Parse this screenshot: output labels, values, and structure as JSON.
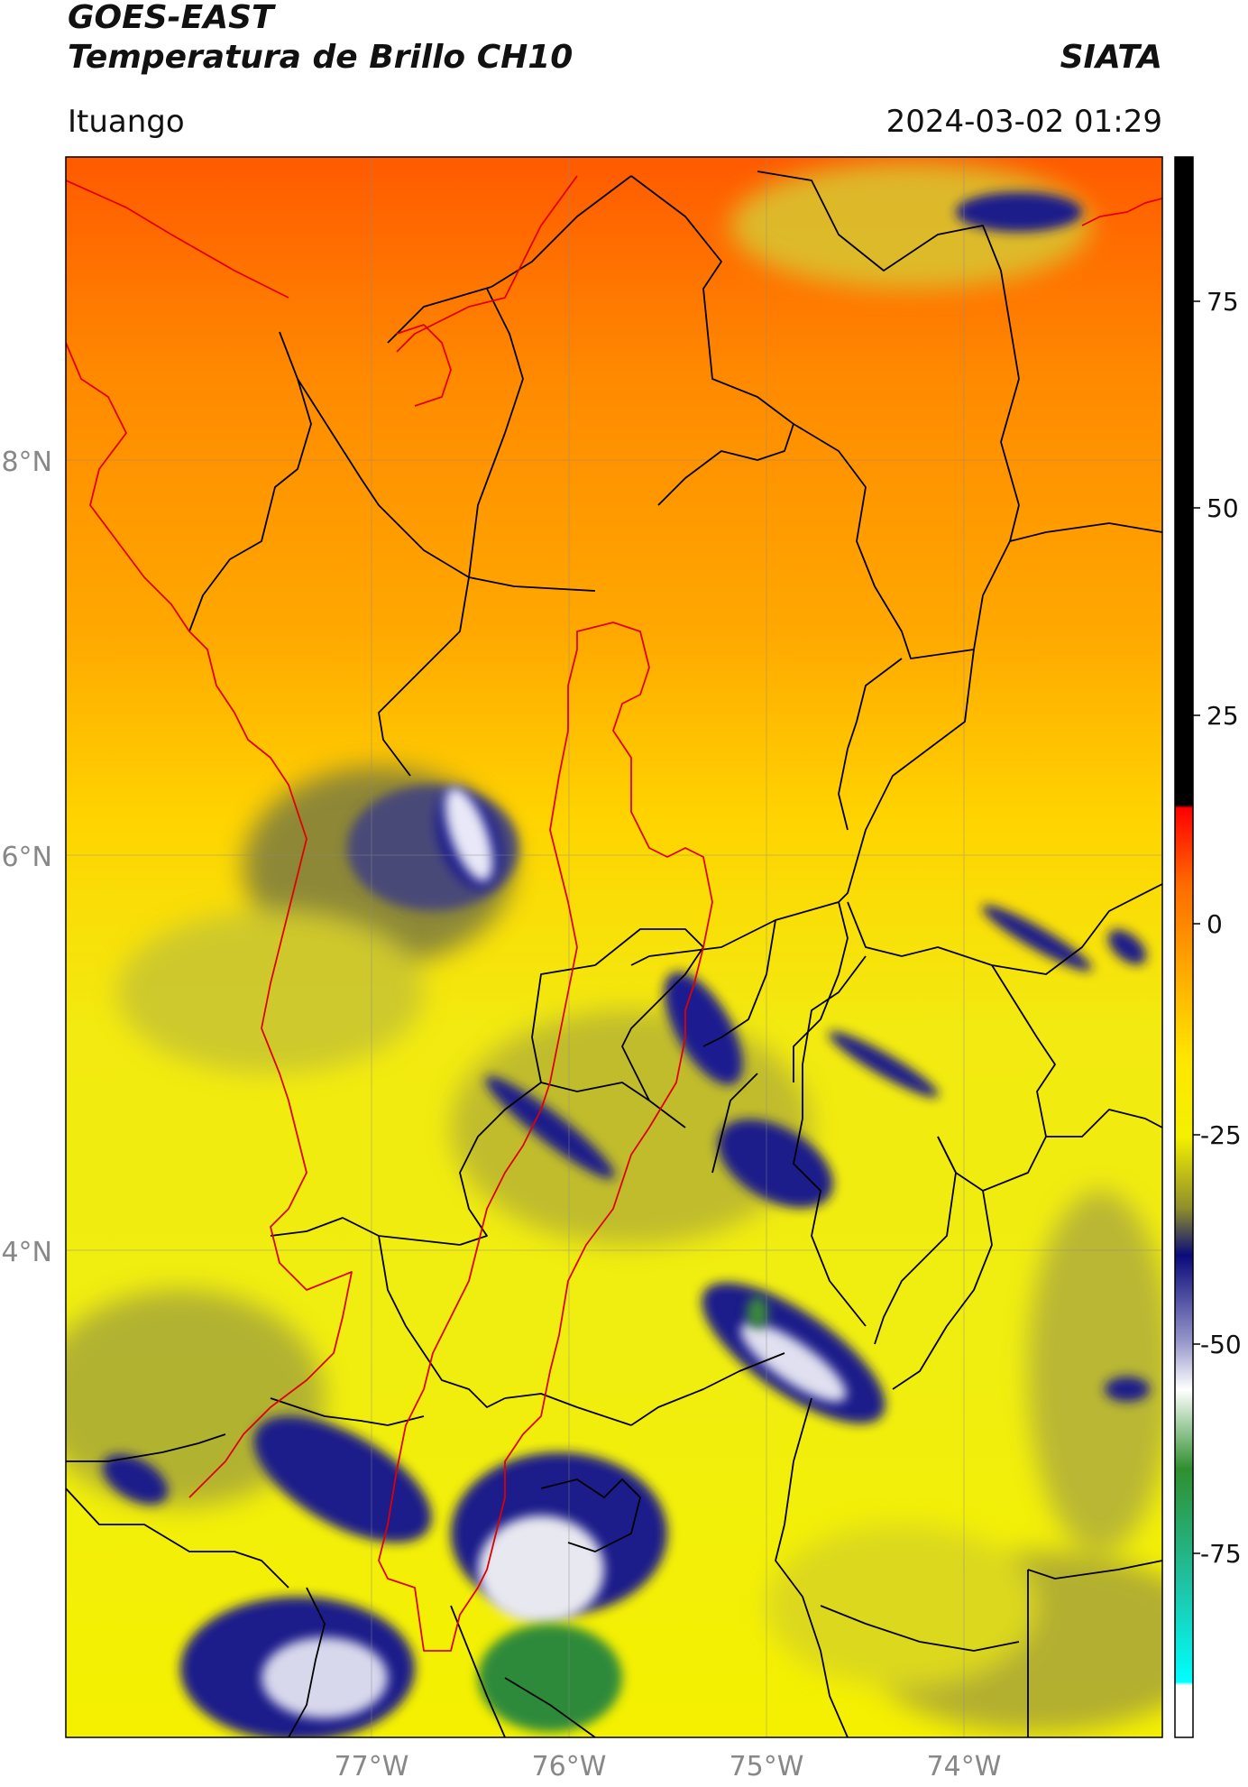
{
  "header": {
    "title_line1": "GOES-EAST",
    "title_line2": "Temperatura de Brillo CH10",
    "organization": "SIATA",
    "location": "Ituango",
    "timestamp": "2024-03-02 01:29"
  },
  "map": {
    "lat_labels": [
      "8°N",
      "6°N",
      "4°N"
    ],
    "lon_labels": [
      "77°W",
      "76°W",
      "75°W",
      "74°W"
    ],
    "border_colors": {
      "admin": "#000000",
      "basin": "#e00000"
    }
  },
  "colorbar": {
    "tick_labels": [
      "75",
      "50",
      "25",
      "0",
      "-25",
      "-50",
      "-75"
    ],
    "colors": {
      "black": "#000000",
      "red": "#ff0000",
      "orange": "#ff9a00",
      "yellow": "#fffb00",
      "olive": "#8f8f2a",
      "navy": "#0a0a7a",
      "white": "#ffffff",
      "green": "#2f8f2f",
      "teal": "#20c0a0",
      "cyan": "#00ffff"
    }
  }
}
